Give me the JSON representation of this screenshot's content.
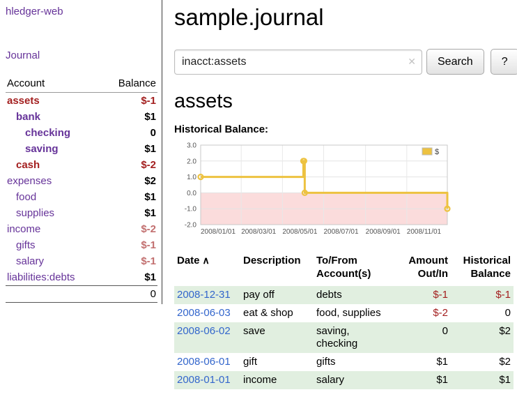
{
  "app": {
    "title": "hledger-web"
  },
  "colors": {
    "link_purple": "#663399",
    "date_link_blue": "#3366cc",
    "negative_red": "#a31f1f",
    "negative_muted_red": "#c26f6f",
    "row_shade_green": "#e1efe0",
    "chart_series_yellow": "#edc240",
    "chart_negative_region_pink": "#fbdcdc"
  },
  "sidebar": {
    "journal_link": "Journal",
    "accounts": {
      "account_header": "Account",
      "balance_header": "Balance",
      "rows": [
        {
          "name": "assets",
          "indent": 0,
          "bold": true,
          "name_style": "negative",
          "balance": "$-1",
          "balance_style": "negative"
        },
        {
          "name": "bank",
          "indent": 1,
          "bold": true,
          "name_style": "link",
          "balance": "$1",
          "balance_style": "normal"
        },
        {
          "name": "checking",
          "indent": 2,
          "bold": true,
          "name_style": "link",
          "balance": "0",
          "balance_style": "normal"
        },
        {
          "name": "saving",
          "indent": 2,
          "bold": true,
          "name_style": "link",
          "balance": "$1",
          "balance_style": "normal"
        },
        {
          "name": "cash",
          "indent": 1,
          "bold": true,
          "name_style": "negative",
          "balance": "$-2",
          "balance_style": "negative"
        },
        {
          "name": "expenses",
          "indent": 0,
          "bold": false,
          "name_style": "link",
          "balance": "$2",
          "balance_style": "normal"
        },
        {
          "name": "food",
          "indent": 1,
          "bold": false,
          "name_style": "link",
          "balance": "$1",
          "balance_style": "normal"
        },
        {
          "name": "supplies",
          "indent": 1,
          "bold": false,
          "name_style": "link",
          "balance": "$1",
          "balance_style": "normal"
        },
        {
          "name": "income",
          "indent": 0,
          "bold": false,
          "name_style": "link",
          "balance": "$-2",
          "balance_style": "negative-muted"
        },
        {
          "name": "gifts",
          "indent": 1,
          "bold": false,
          "name_style": "link",
          "balance": "$-1",
          "balance_style": "negative-muted"
        },
        {
          "name": "salary",
          "indent": 1,
          "bold": false,
          "name_style": "link",
          "balance": "$-1",
          "balance_style": "negative-muted"
        },
        {
          "name": "liabilities:debts",
          "indent": 0,
          "bold": false,
          "name_style": "link",
          "balance": "$1",
          "balance_style": "normal"
        }
      ],
      "total": "0"
    }
  },
  "main": {
    "title": "sample.journal",
    "search": {
      "value": "inacct:assets",
      "clear_icon": "✕",
      "button_label": "Search",
      "help_label": "?"
    },
    "heading": "assets",
    "chart_label": "Historical Balance:"
  },
  "chart_data": {
    "type": "line",
    "step": true,
    "title": "Historical Balance",
    "legend": [
      {
        "label": "$",
        "color": "#edc240"
      }
    ],
    "legend_position": "top-right",
    "grid": true,
    "ylim": [
      -2.0,
      3.0
    ],
    "yticks": [
      "3.0",
      "2.0",
      "1.0",
      "0.0",
      "-1.0",
      "-2.0"
    ],
    "xticks": [
      "2008/01/01",
      "2008/03/01",
      "2008/05/01",
      "2008/07/01",
      "2008/09/01",
      "2008/11/01"
    ],
    "x_range": [
      "2008-01-01",
      "2008-12-31"
    ],
    "series": [
      {
        "name": "$",
        "color": "#edc240",
        "points": [
          [
            "2008-01-01",
            1
          ],
          [
            "2008-06-01",
            2
          ],
          [
            "2008-06-02",
            2
          ],
          [
            "2008-06-03",
            0
          ],
          [
            "2008-12-31",
            -1
          ]
        ]
      }
    ],
    "negative_region_color": "#fbdcdc"
  },
  "register": {
    "headers": {
      "date": {
        "line1": "Date",
        "sort_icon": "∧"
      },
      "description": {
        "line1": "Description"
      },
      "accounts": {
        "line1": "To/From",
        "line2": "Account(s)"
      },
      "amount": {
        "line1": "Amount",
        "line2": "Out/In"
      },
      "balance": {
        "line1": "Historical",
        "line2": "Balance"
      }
    },
    "rows": [
      {
        "date": "2008-12-31",
        "description": "pay off",
        "accounts": [
          "debts"
        ],
        "amount": "$-1",
        "amount_negative": true,
        "balance": "$-1",
        "balance_negative": true,
        "shaded": true
      },
      {
        "date": "2008-06-03",
        "description": "eat & shop",
        "accounts": [
          "food, supplies"
        ],
        "amount": "$-2",
        "amount_negative": true,
        "balance": "0",
        "balance_negative": false,
        "shaded": false
      },
      {
        "date": "2008-06-02",
        "description": "save",
        "accounts": [
          "saving,",
          "checking"
        ],
        "amount": "0",
        "amount_negative": false,
        "balance": "$2",
        "balance_negative": false,
        "shaded": true
      },
      {
        "date": "2008-06-01",
        "description": "gift",
        "accounts": [
          "gifts"
        ],
        "amount": "$1",
        "amount_negative": false,
        "balance": "$2",
        "balance_negative": false,
        "shaded": false
      },
      {
        "date": "2008-01-01",
        "description": "income",
        "accounts": [
          "salary"
        ],
        "amount": "$1",
        "amount_negative": false,
        "balance": "$1",
        "balance_negative": false,
        "shaded": true
      }
    ]
  }
}
